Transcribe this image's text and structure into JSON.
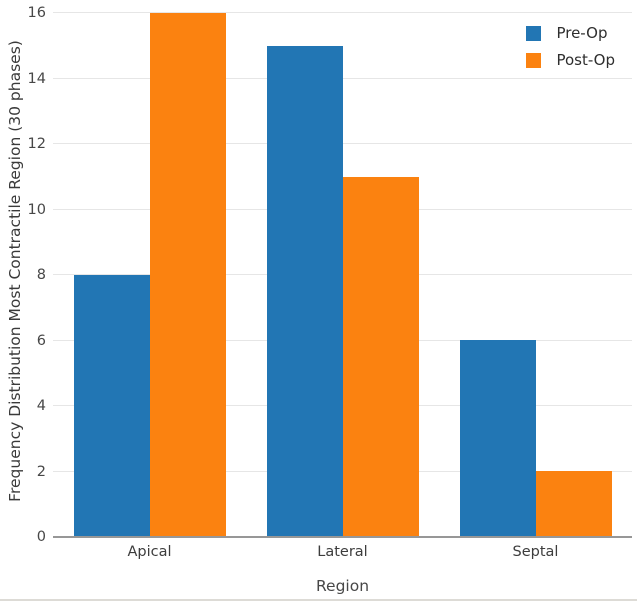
{
  "chart_data": {
    "type": "bar",
    "title": "",
    "xlabel": "Region",
    "ylabel": "Frequency Distribution Most Contractile Region (30 phases)",
    "categories": [
      "Apical",
      "Lateral",
      "Septal"
    ],
    "series": [
      {
        "name": "Pre-Op",
        "color": "#2276b4",
        "values": [
          8,
          15,
          6
        ]
      },
      {
        "name": "Post-Op",
        "color": "#fb8210",
        "values": [
          16,
          11,
          2
        ]
      }
    ],
    "ylim": [
      0,
      16
    ],
    "yticks": [
      0,
      2,
      4,
      6,
      8,
      10,
      12,
      14,
      16
    ],
    "grid": true,
    "legend_position": "top-right",
    "colors": {
      "gridline": "#e6e6e6",
      "axis_line": "#979797",
      "tick_text": "#474747",
      "label_text": "#3a3a3a",
      "background": "#ffffff"
    }
  }
}
